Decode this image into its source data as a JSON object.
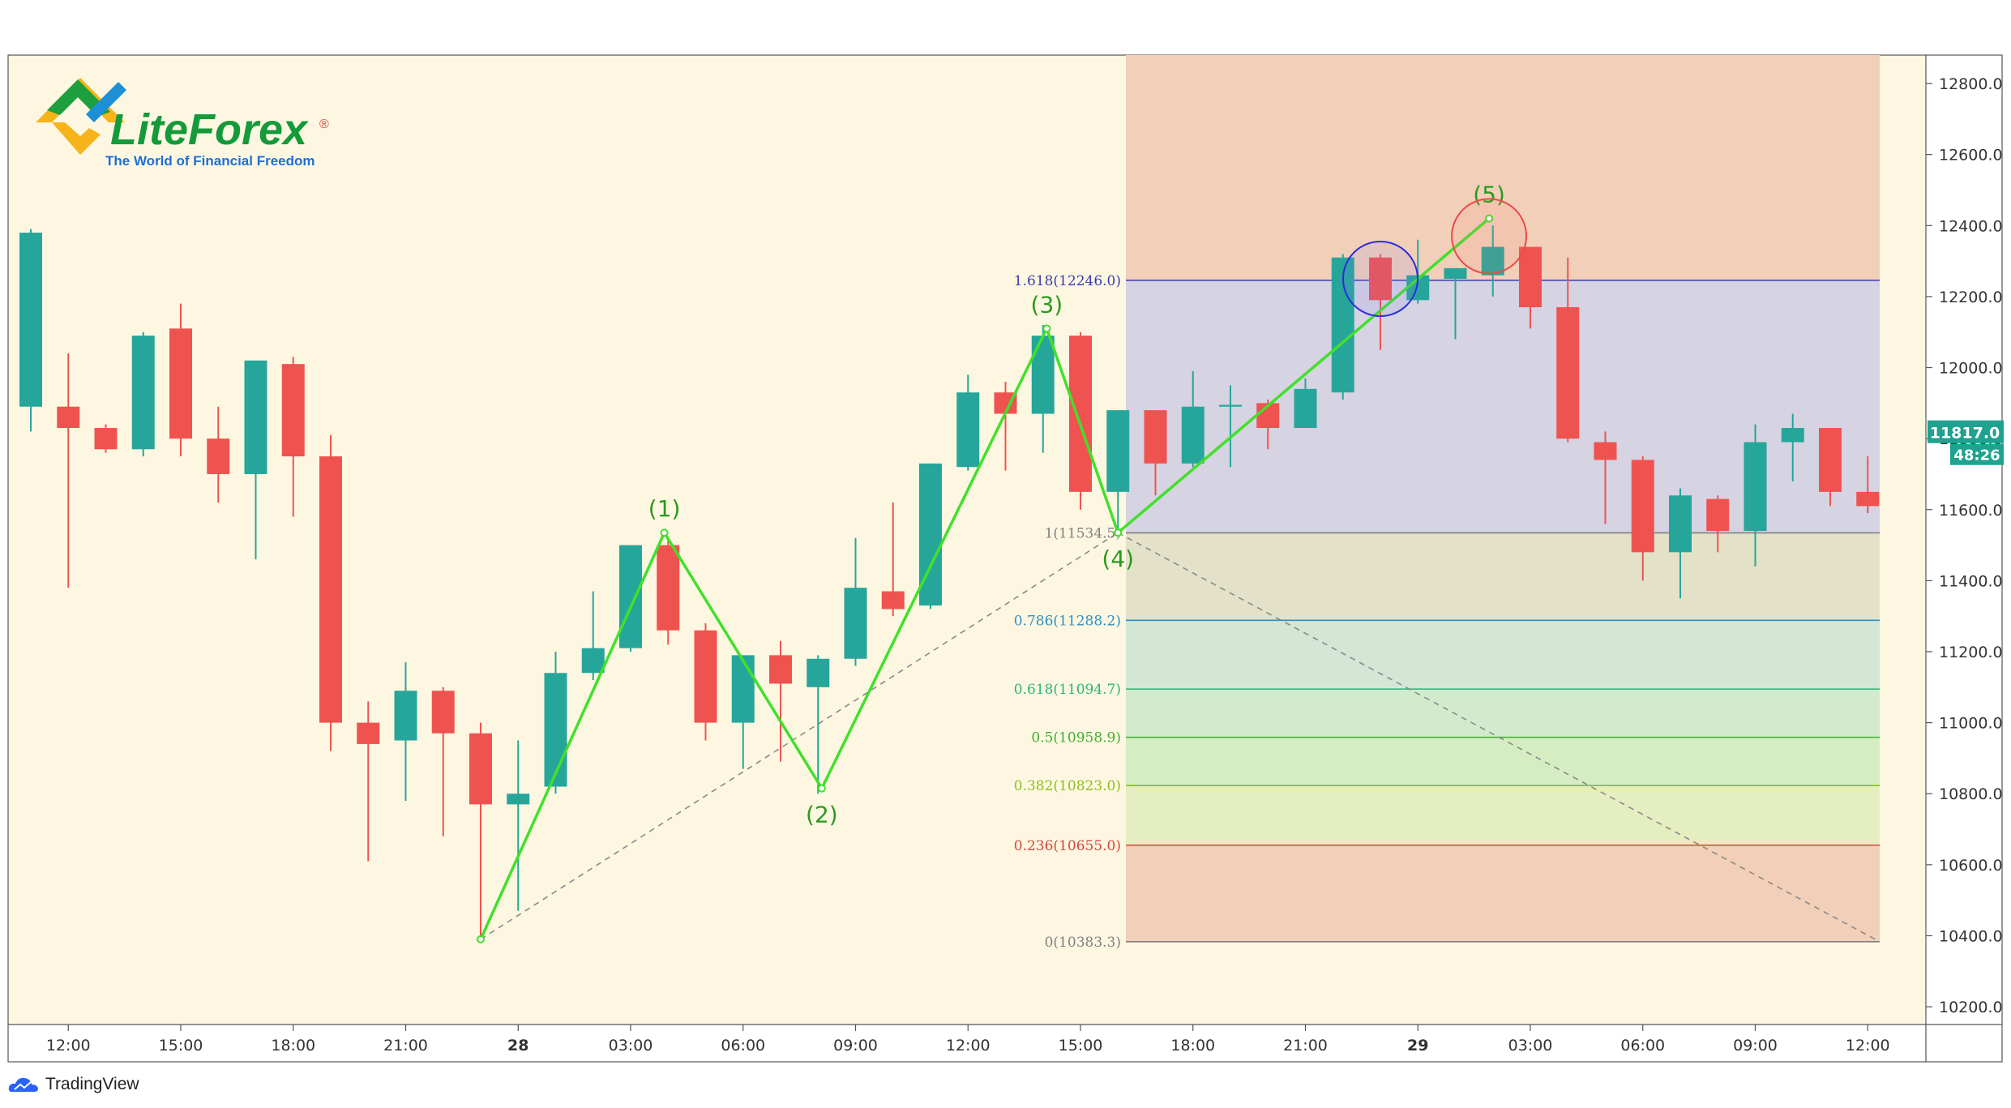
{
  "chart_data": {
    "type": "candlestick",
    "title": "",
    "ylim": [
      10150,
      12880
    ],
    "y_ticks": [
      "12800.0",
      "12600.0",
      "12400.0",
      "12200.0",
      "12000.0",
      "11800.0",
      "11600.0",
      "11400.0",
      "11200.0",
      "11000.0",
      "10800.0",
      "10600.0",
      "10400.0",
      "10200.0"
    ],
    "y_tick_values": [
      12800,
      12600,
      12400,
      12200,
      12000,
      11800,
      11600,
      11400,
      11200,
      11000,
      10800,
      10600,
      10400,
      10200
    ],
    "x_ticks": [
      {
        "label": "12:00",
        "bar": 1,
        "bold": false
      },
      {
        "label": "15:00",
        "bar": 4,
        "bold": false
      },
      {
        "label": "18:00",
        "bar": 7,
        "bold": false
      },
      {
        "label": "21:00",
        "bar": 10,
        "bold": false
      },
      {
        "label": "28",
        "bar": 13,
        "bold": true
      },
      {
        "label": "03:00",
        "bar": 16,
        "bold": false
      },
      {
        "label": "06:00",
        "bar": 19,
        "bold": false
      },
      {
        "label": "09:00",
        "bar": 22,
        "bold": false
      },
      {
        "label": "12:00",
        "bar": 25,
        "bold": false
      },
      {
        "label": "15:00",
        "bar": 28,
        "bold": false
      },
      {
        "label": "18:00",
        "bar": 31,
        "bold": false
      },
      {
        "label": "21:00",
        "bar": 34,
        "bold": false
      },
      {
        "label": "29",
        "bar": 37,
        "bold": true
      },
      {
        "label": "03:00",
        "bar": 40,
        "bold": false
      },
      {
        "label": "06:00",
        "bar": 43,
        "bold": false
      },
      {
        "label": "09:00",
        "bar": 46,
        "bold": false
      },
      {
        "label": "12:00",
        "bar": 49,
        "bold": false
      }
    ],
    "candles": [
      {
        "o": 11890,
        "h": 12390,
        "l": 11820,
        "c": 12380
      },
      {
        "o": 11890,
        "h": 12040,
        "l": 11380,
        "c": 11830
      },
      {
        "o": 11830,
        "h": 11840,
        "l": 11760,
        "c": 11770
      },
      {
        "o": 11770,
        "h": 12100,
        "l": 11750,
        "c": 12090
      },
      {
        "o": 12110,
        "h": 12180,
        "l": 11750,
        "c": 11800
      },
      {
        "o": 11800,
        "h": 11890,
        "l": 11620,
        "c": 11700
      },
      {
        "o": 11700,
        "h": 12020,
        "l": 11460,
        "c": 12020
      },
      {
        "o": 12010,
        "h": 12030,
        "l": 11580,
        "c": 11750
      },
      {
        "o": 11750,
        "h": 11810,
        "l": 10920,
        "c": 11000
      },
      {
        "o": 11000,
        "h": 11060,
        "l": 10610,
        "c": 10940
      },
      {
        "o": 10950,
        "h": 11170,
        "l": 10780,
        "c": 11090
      },
      {
        "o": 11090,
        "h": 11100,
        "l": 10680,
        "c": 10970
      },
      {
        "o": 10970,
        "h": 11000,
        "l": 10390,
        "c": 10770
      },
      {
        "o": 10770,
        "h": 10950,
        "l": 10470,
        "c": 10800
      },
      {
        "o": 10820,
        "h": 11200,
        "l": 10800,
        "c": 11140
      },
      {
        "o": 11140,
        "h": 11370,
        "l": 11120,
        "c": 11210
      },
      {
        "o": 11210,
        "h": 11500,
        "l": 11200,
        "c": 11500
      },
      {
        "o": 11500,
        "h": 11520,
        "l": 11220,
        "c": 11260
      },
      {
        "o": 11260,
        "h": 11280,
        "l": 10950,
        "c": 11000
      },
      {
        "o": 11000,
        "h": 11190,
        "l": 10870,
        "c": 11190
      },
      {
        "o": 11190,
        "h": 11230,
        "l": 10890,
        "c": 11110
      },
      {
        "o": 11100,
        "h": 11190,
        "l": 10800,
        "c": 11180
      },
      {
        "o": 11180,
        "h": 11520,
        "l": 11160,
        "c": 11380
      },
      {
        "o": 11370,
        "h": 11620,
        "l": 11300,
        "c": 11320
      },
      {
        "o": 11330,
        "h": 11730,
        "l": 11320,
        "c": 11730
      },
      {
        "o": 11720,
        "h": 11980,
        "l": 11710,
        "c": 11930
      },
      {
        "o": 11930,
        "h": 11960,
        "l": 11710,
        "c": 11870
      },
      {
        "o": 11870,
        "h": 12120,
        "l": 11760,
        "c": 12090
      },
      {
        "o": 12090,
        "h": 12100,
        "l": 11600,
        "c": 11650
      },
      {
        "o": 11650,
        "h": 11870,
        "l": 11540,
        "c": 11880
      },
      {
        "o": 11880,
        "h": 11880,
        "l": 11640,
        "c": 11730
      },
      {
        "o": 11730,
        "h": 11990,
        "l": 11720,
        "c": 11890
      },
      {
        "o": 11890,
        "h": 11950,
        "l": 11720,
        "c": 11895
      },
      {
        "o": 11900,
        "h": 11910,
        "l": 11770,
        "c": 11830
      },
      {
        "o": 11830,
        "h": 11970,
        "l": 11830,
        "c": 11940
      },
      {
        "o": 11930,
        "h": 12320,
        "l": 11910,
        "c": 12310
      },
      {
        "o": 12310,
        "h": 12320,
        "l": 12050,
        "c": 12190
      },
      {
        "o": 12190,
        "h": 12360,
        "l": 12180,
        "c": 12260
      },
      {
        "o": 12250,
        "h": 12280,
        "l": 12080,
        "c": 12280
      },
      {
        "o": 12260,
        "h": 12400,
        "l": 12200,
        "c": 12340
      },
      {
        "o": 12340,
        "h": 12340,
        "l": 12110,
        "c": 12170
      },
      {
        "o": 12170,
        "h": 12310,
        "l": 11790,
        "c": 11800
      },
      {
        "o": 11790,
        "h": 11820,
        "l": 11560,
        "c": 11740
      },
      {
        "o": 11740,
        "h": 11750,
        "l": 11400,
        "c": 11480
      },
      {
        "o": 11480,
        "h": 11660,
        "l": 11350,
        "c": 11640
      },
      {
        "o": 11630,
        "h": 11640,
        "l": 11480,
        "c": 11540
      },
      {
        "o": 11540,
        "h": 11840,
        "l": 11440,
        "c": 11790
      },
      {
        "o": 11790,
        "h": 11870,
        "l": 11680,
        "c": 11830
      },
      {
        "o": 11830,
        "h": 11830,
        "l": 11610,
        "c": 11650
      },
      {
        "o": 11650,
        "h": 11750,
        "l": 11590,
        "c": 11610
      }
    ],
    "fib_levels": [
      {
        "ratio": "1.618",
        "value": 12246.0,
        "label": "1.618(12246.0)",
        "color": "#3b3bb0"
      },
      {
        "ratio": "1",
        "value": 11534.5,
        "label": "1(11534.5)",
        "color": "#808080"
      },
      {
        "ratio": "0.786",
        "value": 11288.2,
        "label": "0.786(11288.2)",
        "color": "#2e8fc4"
      },
      {
        "ratio": "0.618",
        "value": 11094.7,
        "label": "0.618(11094.7)",
        "color": "#2fb27a"
      },
      {
        "ratio": "0.5",
        "value": 10958.9,
        "label": "0.5(10958.9)",
        "color": "#3fae2f"
      },
      {
        "ratio": "0.382",
        "value": 10823.0,
        "label": "0.382(10823.0)",
        "color": "#8cbf1f"
      },
      {
        "ratio": "0.236",
        "value": 10655.0,
        "label": "0.236(10655.0)",
        "color": "#d9453a"
      },
      {
        "ratio": "0",
        "value": 10383.3,
        "label": "0(10383.3)",
        "color": "#808080"
      }
    ],
    "wave_points": [
      {
        "label": "",
        "bar": 12,
        "price": 10390
      },
      {
        "label": "(1)",
        "bar": 16.9,
        "price": 11535
      },
      {
        "label": "(2)",
        "bar": 21.1,
        "price": 10815
      },
      {
        "label": "(3)",
        "bar": 27.1,
        "price": 12110
      },
      {
        "label": "(4)",
        "bar": 29.0,
        "price": 11535
      },
      {
        "label": "(5)",
        "bar": 38.9,
        "price": 12420
      }
    ],
    "current_price": {
      "label": "11817.0",
      "value": 11817,
      "countdown": "48:26"
    },
    "fib_zone_colors": {
      "extension": "#f2cfb8",
      "upper": "#d6d3e2",
      "band_1_0786": "#e3e2c8",
      "band_0786_0618": "#d4e6d6",
      "band_0618_05": "#d2ebcd",
      "band_05_0382": "#d5edc2",
      "band_0382_0236": "#e5eec0",
      "lower": "#f2cfb8"
    },
    "colors": {
      "background": "#fdf7e1",
      "bull": "#26a69a",
      "bear": "#ef5350",
      "wave": "#41e02b",
      "wave_label": "#2a9a1d"
    }
  },
  "logo": {
    "name": "LiteForex",
    "registered": "®",
    "tagline": "The World of Financial Freedom"
  },
  "credit": {
    "label": "TradingView"
  }
}
